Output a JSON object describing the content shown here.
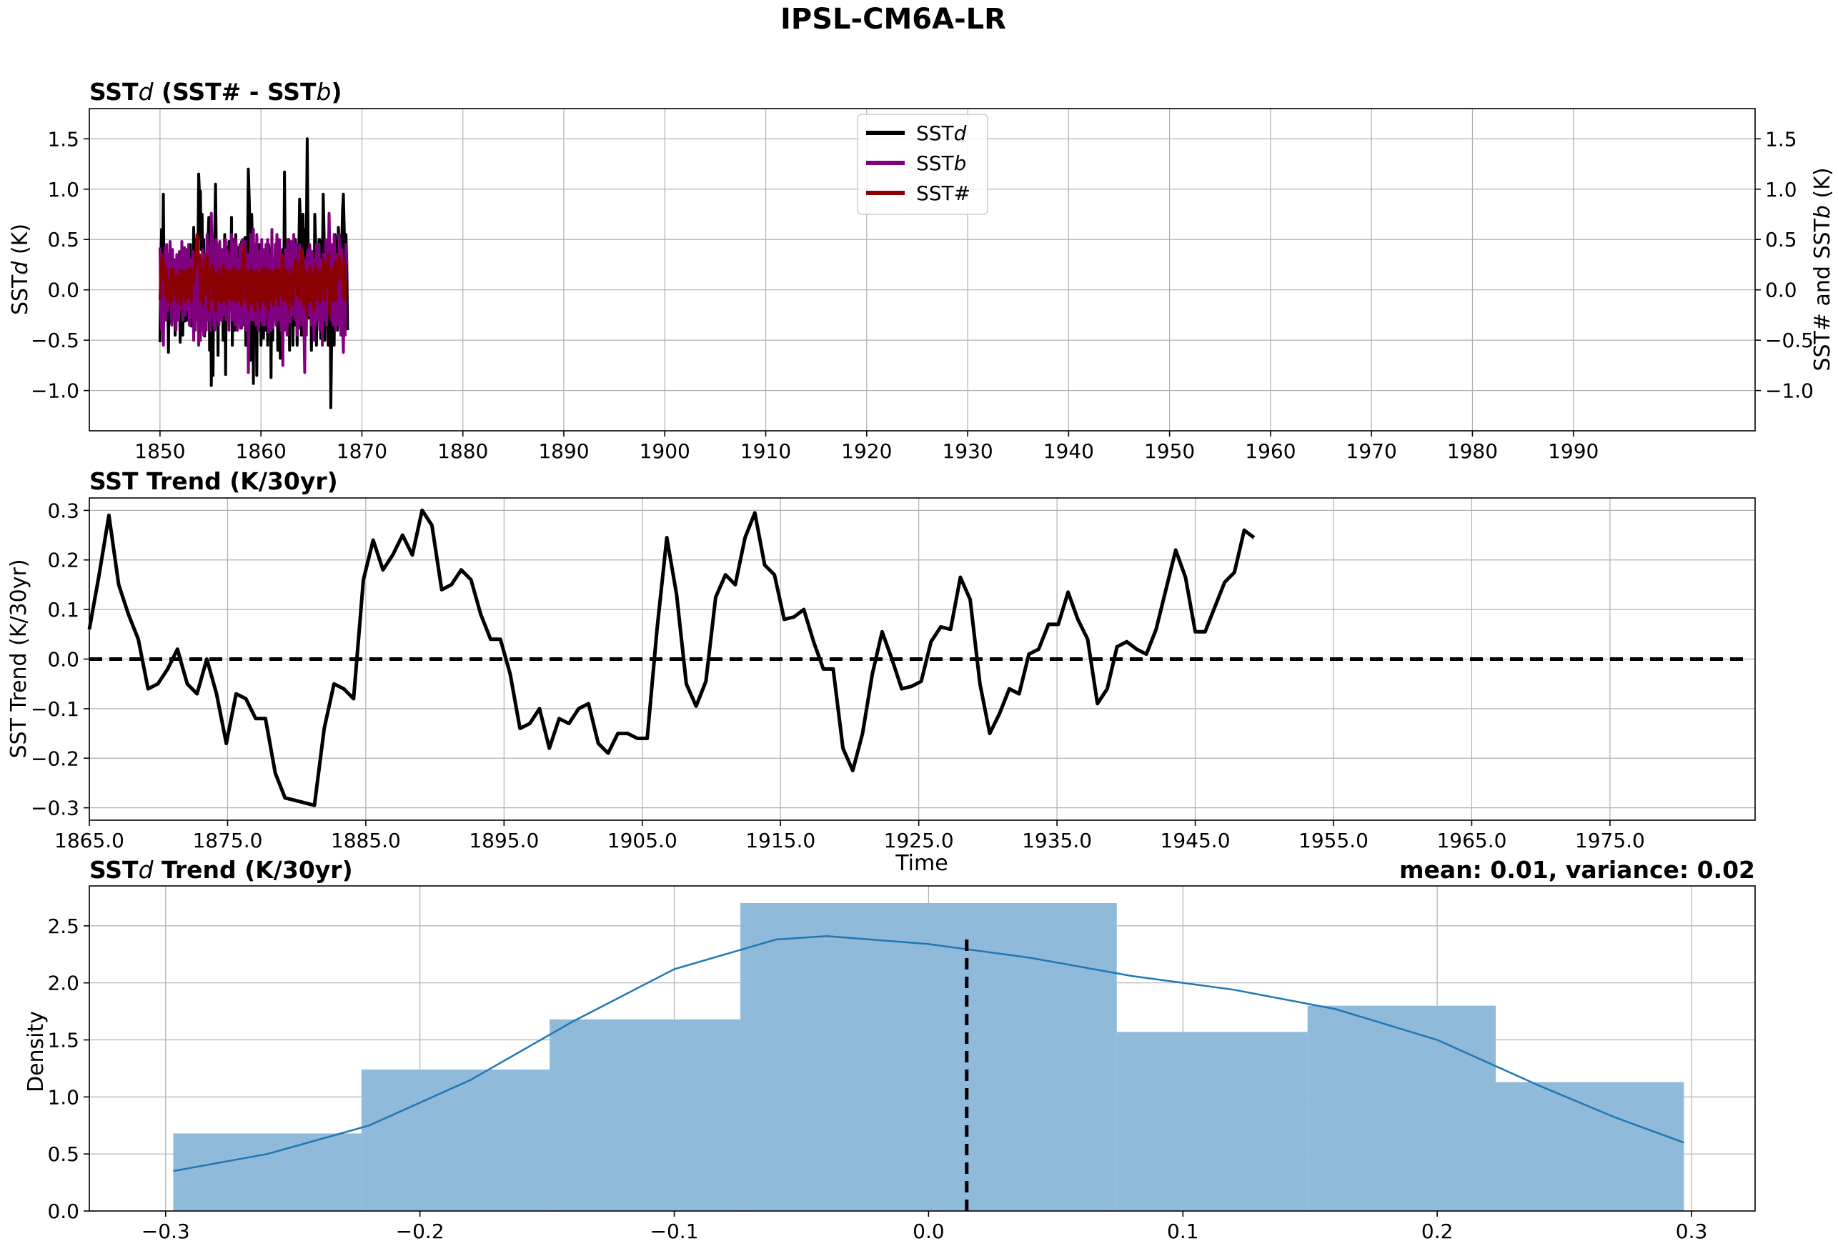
{
  "figure": {
    "title": "IPSL-CM6A-LR"
  },
  "colors": {
    "sstd": "#000000",
    "sstb": "#800080",
    "sst_hash": "#8b0000",
    "hist_fill": "#8fbad9",
    "kde": "#1f77b4",
    "grid": "#b0b0b0"
  },
  "panels": {
    "top": {
      "title_prefix": "SST",
      "title_italic": "d",
      "title_suffix": " (SST# - SST",
      "title_italic2": "b",
      "title_end": ")",
      "ylabel_prefix": "SST",
      "ylabel_italic": "d",
      "ylabel_suffix": " (K)",
      "y2label_prefix": "SST# and SST",
      "y2label_italic": "b",
      "y2label_suffix": " (K)",
      "legend": [
        {
          "prefix": "SST",
          "italic": "d",
          "color": "#000000"
        },
        {
          "prefix": "SST",
          "italic": "b",
          "color": "#800080"
        },
        {
          "prefix": "SST#",
          "italic": "",
          "color": "#8b0000"
        }
      ]
    },
    "middle": {
      "title": "SST Trend (K/30yr)",
      "ylabel": "SST Trend (K/30yr)",
      "xlabel": "Time"
    },
    "bottom": {
      "title_prefix": "SST",
      "title_italic": "d",
      "title_suffix": " Trend (K/30yr)",
      "stats": "mean: 0.01, variance: 0.02",
      "ylabel": "Density"
    }
  },
  "chart_data": [
    {
      "type": "line",
      "title": "SSTd (SST# - SSTb)",
      "xlim": [
        1843,
        2008
      ],
      "ylim": [
        -1.4,
        1.8
      ],
      "y2lim": [
        -1.4,
        1.8
      ],
      "xticks": [
        1850,
        1860,
        1870,
        1880,
        1890,
        1900,
        1910,
        1920,
        1930,
        1940,
        1950,
        1960,
        1970,
        1980,
        1990
      ],
      "yticks": [
        -1.0,
        -0.5,
        0.0,
        0.5,
        1.0,
        1.5
      ],
      "ytick_labels": [
        "−1.0",
        "−0.5",
        "0.0",
        "0.5",
        "1.0",
        "1.5"
      ],
      "zero_line": 0,
      "x_start": 1850,
      "x_step": 0.0833333,
      "series": [
        {
          "name": "SSTd",
          "color": "#000000",
          "values": [
            -0.52,
            0.35,
            0.6,
            0.2,
            0.95,
            -0.2,
            0.1,
            -0.3,
            0.4,
            0.15,
            -0.62,
            0.1,
            0.18,
            -0.32,
            0.05,
            0.2,
            -0.21,
            0.22,
            -0.45,
            0.18,
            0.3,
            -0.21,
            0.05,
            0.2,
            -0.52,
            0.1,
            0.22,
            -0.45,
            0.02,
            0.3,
            -0.31,
            0.21,
            0.35,
            -0.3,
            0.2,
            0.25,
            0.45,
            -0.36,
            0.22,
            -0.25,
            0.62,
            -0.1,
            0.5,
            -0.26,
            0.18,
            0.25,
            1.15,
            0.95,
            0.98,
            0.4,
            0.75,
            0.1,
            0.5,
            -0.46,
            0.25,
            0.3,
            -0.2,
            0.45,
            0.72,
            -0.6,
            0.5,
            -0.95,
            0.3,
            -0.85,
            0.35,
            0.55,
            1.05,
            0.3,
            0.4,
            -0.65,
            0.45,
            0.1,
            -0.15,
            0.25,
            0.3,
            -0.5,
            0.18,
            0.55,
            -0.84,
            0.38,
            0.42,
            -0.3,
            0.48,
            0.45,
            0.1,
            0.72,
            -0.55,
            0.1,
            0.5,
            -0.4,
            0.55,
            0.35,
            -0.2,
            0.42,
            0.35,
            0.3,
            -0.38,
            0.48,
            0.15,
            -0.1,
            0.35,
            0.52,
            -0.55,
            0.35,
            0.3,
            1.2,
            0.92,
            0.6,
            -0.7,
            0.75,
            0.4,
            -0.93,
            0.4,
            -0.5,
            0.38,
            -0.85,
            0.15,
            -0.3,
            0.45,
            0.28,
            -0.55,
            0.1,
            0.4,
            -0.48,
            0.1,
            0.35,
            -0.4,
            0.15,
            -0.55,
            0.45,
            0.4,
            0.3,
            -0.87,
            0.4,
            -0.5,
            0.2,
            0.25,
            -0.3,
            0.35,
            0.5,
            -0.6,
            -0.15,
            0.45,
            -0.68,
            0.1,
            0.3,
            0.4,
            -0.3,
            1.17,
            0.2,
            0.3,
            -0.4,
            0.45,
            0.5,
            -0.6,
            0.35,
            0.2,
            0.45,
            -0.55,
            0.2,
            -0.35,
            0.5,
            0.2,
            -0.55,
            0.35,
            0.38,
            0.9,
            0.65,
            -0.45,
            0.5,
            0.75,
            0.3,
            -0.3,
            0.6,
            0.5,
            1.5,
            0.5,
            -0.28,
            0.4,
            0.25,
            -0.6,
            0.3,
            0.35,
            -0.35,
            0.75,
            0.45,
            -0.55,
            0.4,
            -0.15,
            0.5,
            0.5,
            -0.48,
            0.35,
            0.25,
            0.95,
            0.55,
            -0.5,
            0.3,
            0.4,
            0.3,
            -0.55,
            0.55,
            0.45,
            -1.17,
            -0.5,
            0.35,
            0.3,
            -0.55,
            0.55,
            0.45,
            0.3,
            -0.4,
            0.62,
            0.35,
            0.25,
            -0.4,
            0.45,
            0.8,
            0.95,
            0.6,
            -0.1,
            0.55,
            0.3,
            -0.4
          ]
        },
        {
          "name": "SSTb",
          "color": "#800080",
          "values": [
            0.42,
            -0.2,
            -0.4,
            0.25,
            -0.55,
            0.2,
            0.42,
            -0.3,
            0.45,
            -0.2,
            0.35,
            -0.15,
            0.48,
            0.2,
            -0.35,
            0.4,
            -0.3,
            0.3,
            0.25,
            -0.4,
            0.35,
            0.1,
            -0.3,
            0.38,
            0.2,
            -0.2,
            0.48,
            -0.3,
            0.1,
            0.42,
            -0.25,
            0.35,
            0.4,
            -0.2,
            0.45,
            -0.35,
            0.3,
            0.25,
            -0.28,
            0.38,
            -0.5,
            0.2,
            -0.4,
            0.35,
            -0.3,
            0.45,
            -0.55,
            -0.3,
            -0.5,
            0.3,
            -0.4,
            0.4,
            -0.45,
            0.35,
            0.3,
            -0.4,
            0.55,
            -0.3,
            0.42,
            0.25,
            -0.4,
            0.76,
            0.2,
            0.5,
            -0.35,
            -0.4,
            0.25,
            0.5,
            -0.3,
            0.45,
            -0.35,
            0.48,
            0.2,
            -0.3,
            0.4,
            0.35,
            -0.25,
            0.45,
            0.5,
            -0.3,
            0.35,
            0.38,
            -0.4,
            0.3,
            -0.2,
            0.55,
            -0.3,
            0.45,
            0.2,
            -0.35,
            0.5,
            0.3,
            -0.4,
            0.3,
            -0.32,
            0.45,
            0.35,
            -0.38,
            0.5,
            0.2,
            -0.35,
            0.48,
            0.3,
            -0.4,
            0.35,
            -0.82,
            -0.2,
            0.3,
            0.55,
            -0.3,
            0.35,
            0.6,
            -0.3,
            0.45,
            -0.35,
            0.55,
            0.1,
            -0.4,
            0.38,
            0.3,
            -0.3,
            0.5,
            -0.35,
            0.4,
            0.2,
            -0.35,
            0.45,
            0.35,
            0.5,
            -0.42,
            0.35,
            0.25,
            -0.4,
            0.6,
            -0.38,
            0.3,
            -0.3,
            0.45,
            -0.35,
            0.55,
            0.35,
            -0.3,
            0.5,
            0.2,
            -0.4,
            -0.1,
            -0.75,
            0.3,
            -0.4,
            0.4,
            0.25,
            -0.45,
            0.5,
            -0.3,
            0.35,
            -0.32,
            0.48,
            0.3,
            -0.25,
            0.55,
            0.2,
            -0.3,
            0.45,
            -0.45,
            -0.1,
            -0.38,
            0.45,
            0.3,
            -0.35,
            0.4,
            0.25,
            -0.3,
            -0.82,
            0.3,
            -0.45,
            0.35,
            0.4,
            -0.25,
            0.45,
            0.3,
            -0.35,
            0.38,
            0.2,
            -0.5,
            0.3,
            -0.35,
            0.45,
            0.2,
            -0.3,
            0.45,
            -0.4,
            0.3,
            0.25,
            -0.55,
            0.35,
            0.3,
            -0.3,
            0.5,
            -0.35,
            0.4,
            0.2,
            0.76,
            0.3,
            0.4,
            -0.3,
            0.45,
            -0.35,
            0.55,
            0.25,
            -0.4,
            0.35,
            0.3,
            -0.35,
            0.55,
            0.2,
            -0.45,
            0.4,
            -0.3,
            -0.62,
            0.3,
            -0.45,
            0.45,
            0.25
          ]
        },
        {
          "name": "SST#",
          "color": "#8b0000",
          "values": [
            -0.1,
            0.2,
            0.3,
            0.35,
            0.1,
            0.25,
            -0.05,
            0.15,
            0.2,
            -0.1,
            0.05,
            0.1,
            -0.15,
            0.2,
            0.12,
            -0.1,
            0.2,
            -0.05,
            0.12,
            0.1,
            -0.12,
            0.15,
            -0.08,
            0.1,
            0.2,
            -0.15,
            0.1,
            -0.05,
            0.18,
            0.08,
            -0.12,
            0.15,
            -0.08,
            0.2,
            0.1,
            -0.05,
            0.22,
            -0.12,
            0.2,
            0.05,
            0.15,
            0.1,
            0.3,
            0.4,
            0.55,
            0.5,
            0.25,
            0.35,
            -0.1,
            0.2,
            0.1,
            -0.15,
            0.22,
            0.3,
            0.25,
            -0.05,
            0.35,
            0.15,
            -0.2,
            0.2,
            0.1,
            0.05,
            0.25,
            -0.1,
            0.2,
            0.1,
            -0.2,
            0.15,
            0.1,
            -0.1,
            0.2,
            0.05,
            0.12,
            -0.12,
            0.15,
            0.25,
            -0.1,
            0.2,
            0.1,
            -0.15,
            0.2,
            0.05,
            -0.08,
            0.18,
            0.12,
            -0.1,
            0.15,
            0.22,
            -0.1,
            0.2,
            0.1,
            -0.12,
            0.18,
            0.05,
            -0.1,
            0.2,
            0.12,
            -0.15,
            0.1,
            0.35,
            0.45,
            0.2,
            -0.1,
            0.2,
            0.05,
            -0.2,
            0.15,
            -0.12,
            0.2,
            0.1,
            -0.15,
            0.18,
            0.05,
            -0.2,
            0.1,
            0.2,
            -0.1,
            0.15,
            0.12,
            -0.18,
            0.15,
            0.2,
            -0.1,
            0.12,
            0.22,
            -0.15,
            0.2,
            0.05,
            0.1,
            -0.2,
            0.15,
            0.2,
            -0.1,
            0.18,
            0.08,
            -0.15,
            0.15,
            0.2,
            -0.08,
            0.12,
            0.2,
            -0.15,
            0.2,
            0.1,
            -0.05,
            0.35,
            0.3,
            -0.1,
            0.15,
            0.2,
            -0.12,
            0.1,
            0.18,
            -0.2,
            0.12,
            0.08,
            -0.1,
            0.2,
            -0.15,
            0.12,
            0.2,
            0.3,
            0.2,
            -0.05,
            0.25,
            0.15,
            -0.1,
            0.2,
            0.4,
            0.1,
            0.3,
            -0.15,
            0.2,
            0.12,
            -0.25,
            0.15,
            0.1,
            -0.12,
            0.22,
            0.2,
            -0.1,
            0.15,
            0.1,
            -0.2,
            0.25,
            0.1,
            -0.1,
            0.2,
            0.05,
            0.15,
            -0.12,
            0.2,
            0.1,
            -0.05,
            0.3,
            0.15,
            -0.1,
            0.25,
            0.05,
            0.2,
            0.35,
            0.1,
            -0.25,
            0.15,
            0.2,
            0.1,
            -0.1,
            0.25,
            0.12,
            -0.1,
            0.3,
            0.2,
            0.15,
            0.35,
            0.1,
            0.2,
            0.25,
            -0.05,
            0.2,
            0.3,
            -0.1,
            0.1
          ]
        }
      ]
    },
    {
      "type": "line",
      "title": "SST Trend (K/30yr)",
      "xlabel": "Time",
      "ylabel": "SST Trend (K/30yr)",
      "xlim": [
        1865,
        1985.5
      ],
      "ylim": [
        -0.325,
        0.325
      ],
      "xticks": [
        1865,
        1875,
        1885,
        1895,
        1905,
        1915,
        1925,
        1935,
        1945,
        1955,
        1965,
        1975
      ],
      "xtick_labels": [
        "1865.0",
        "1875.0",
        "1885.0",
        "1895.0",
        "1905.0",
        "1915.0",
        "1925.0",
        "1935.0",
        "1945.0",
        "1955.0",
        "1965.0",
        "1975.0"
      ],
      "yticks": [
        -0.3,
        -0.2,
        -0.1,
        0.0,
        0.1,
        0.2,
        0.3
      ],
      "ytick_labels": [
        "−0.3",
        "−0.2",
        "−0.1",
        "0.0",
        "0.1",
        "0.2",
        "0.3"
      ],
      "zero_line": 0,
      "x_start": 1865,
      "x_step": 0.708,
      "series": [
        {
          "name": "SST Trend",
          "color": "#000000",
          "values": [
            0.06,
            0.17,
            0.29,
            0.15,
            0.09,
            0.04,
            -0.06,
            -0.05,
            -0.02,
            0.02,
            -0.05,
            -0.07,
            0.0,
            -0.07,
            -0.17,
            -0.07,
            -0.08,
            -0.12,
            -0.12,
            -0.23,
            -0.28,
            -0.285,
            -0.29,
            -0.295,
            -0.14,
            -0.05,
            -0.06,
            -0.08,
            0.16,
            0.24,
            0.18,
            0.21,
            0.25,
            0.21,
            0.3,
            0.27,
            0.14,
            0.15,
            0.18,
            0.16,
            0.09,
            0.04,
            0.04,
            -0.03,
            -0.14,
            -0.13,
            -0.1,
            -0.18,
            -0.12,
            -0.13,
            -0.1,
            -0.09,
            -0.17,
            -0.19,
            -0.15,
            -0.15,
            -0.16,
            -0.16,
            0.06,
            0.245,
            0.13,
            -0.05,
            -0.095,
            -0.045,
            0.125,
            0.17,
            0.15,
            0.245,
            0.295,
            0.19,
            0.17,
            0.08,
            0.085,
            0.1,
            0.035,
            -0.02,
            -0.02,
            -0.18,
            -0.225,
            -0.15,
            -0.03,
            0.055,
            0.0,
            -0.06,
            -0.055,
            -0.045,
            0.035,
            0.065,
            0.06,
            0.165,
            0.12,
            -0.05,
            -0.15,
            -0.11,
            -0.06,
            -0.07,
            0.01,
            0.02,
            0.07,
            0.07,
            0.135,
            0.08,
            0.04,
            -0.09,
            -0.06,
            0.025,
            0.035,
            0.02,
            0.01,
            0.06,
            0.14,
            0.22,
            0.165,
            0.055,
            0.055,
            0.105,
            0.155,
            0.175,
            0.26,
            0.245
          ]
        }
      ]
    },
    {
      "type": "bar",
      "title": "SSTd Trend (K/30yr)",
      "ylabel": "Density",
      "xlim": [
        -0.33,
        0.325
      ],
      "ylim": [
        0,
        2.85
      ],
      "xticks": [
        -0.3,
        -0.2,
        -0.1,
        0.0,
        0.1,
        0.2,
        0.3
      ],
      "xtick_labels": [
        "−0.3",
        "−0.2",
        "−0.1",
        "0.0",
        "0.1",
        "0.2",
        "0.3"
      ],
      "yticks": [
        0.0,
        0.5,
        1.0,
        1.5,
        2.0,
        2.5
      ],
      "ytick_labels": [
        "0.0",
        "0.5",
        "1.0",
        "1.5",
        "2.0",
        "2.5"
      ],
      "bin_edges": [
        -0.297,
        -0.223,
        -0.149,
        -0.074,
        0.0,
        0.074,
        0.149,
        0.223,
        0.297
      ],
      "values": [
        0.68,
        1.24,
        1.68,
        2.7,
        2.7,
        1.57,
        1.8,
        1.13
      ],
      "mean": 0.015,
      "mean_line_top": 2.4,
      "kde": {
        "x": [
          -0.297,
          -0.26,
          -0.22,
          -0.18,
          -0.14,
          -0.1,
          -0.06,
          -0.04,
          0.0,
          0.04,
          0.08,
          0.12,
          0.16,
          0.2,
          0.24,
          0.27,
          0.297
        ],
        "y": [
          0.35,
          0.5,
          0.75,
          1.15,
          1.66,
          2.12,
          2.38,
          2.41,
          2.34,
          2.22,
          2.06,
          1.94,
          1.77,
          1.5,
          1.1,
          0.82,
          0.6
        ]
      }
    }
  ]
}
